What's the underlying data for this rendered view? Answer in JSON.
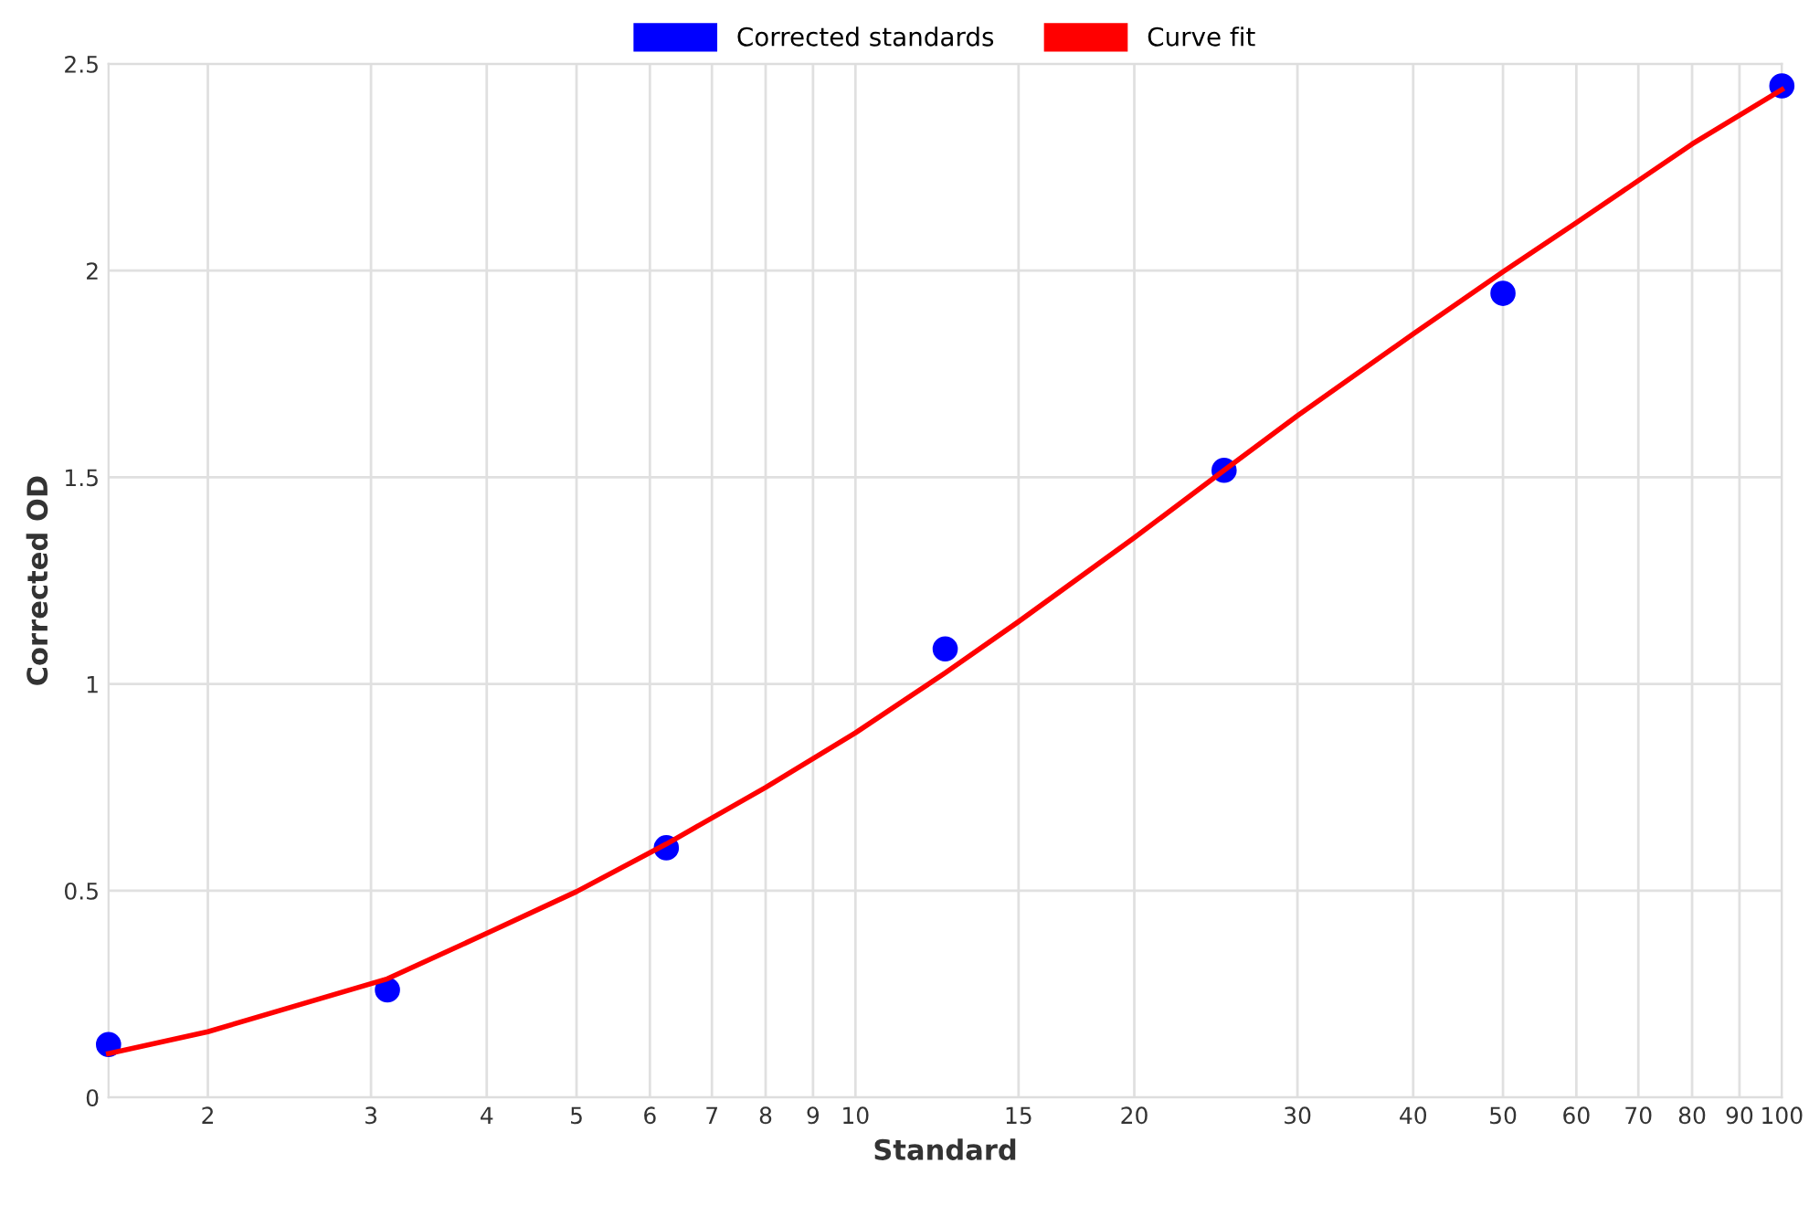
{
  "chart_data": {
    "type": "scatter",
    "xlabel": "Standard",
    "ylabel": "Corrected OD",
    "log": "x",
    "grid": true,
    "legend": "top",
    "xlim": [
      1.5625,
      100
    ],
    "xticks": [
      2,
      3,
      4,
      5,
      6,
      7,
      8,
      9,
      10,
      15,
      20,
      30,
      40,
      50,
      60,
      70,
      80,
      90,
      100
    ],
    "ylim": [
      0,
      2.5
    ],
    "yticks": [
      0,
      0.5,
      1,
      1.5,
      2,
      2.5
    ],
    "series": [
      {
        "name": "Corrected standards",
        "marker": "circle",
        "color": "#0000ff",
        "x": [
          1.5625,
          3.125,
          6.25,
          12.5,
          25,
          50,
          100
        ],
        "values": [
          0.128,
          0.26,
          0.604,
          1.085,
          1.517,
          1.945,
          2.447
        ]
      },
      {
        "name": "Curve fit",
        "type": "line",
        "marker": "none",
        "line_style": "solid",
        "color": "#ff0000",
        "x": [
          1.5625,
          2,
          3.125,
          4,
          5,
          6.25,
          8,
          10,
          12.5,
          15,
          20,
          25,
          30,
          40,
          50,
          60,
          80,
          100
        ],
        "values": [
          0.106,
          0.159,
          0.287,
          0.397,
          0.498,
          0.613,
          0.75,
          0.882,
          1.027,
          1.151,
          1.354,
          1.517,
          1.649,
          1.847,
          1.997,
          2.116,
          2.306,
          2.438
        ]
      }
    ]
  }
}
